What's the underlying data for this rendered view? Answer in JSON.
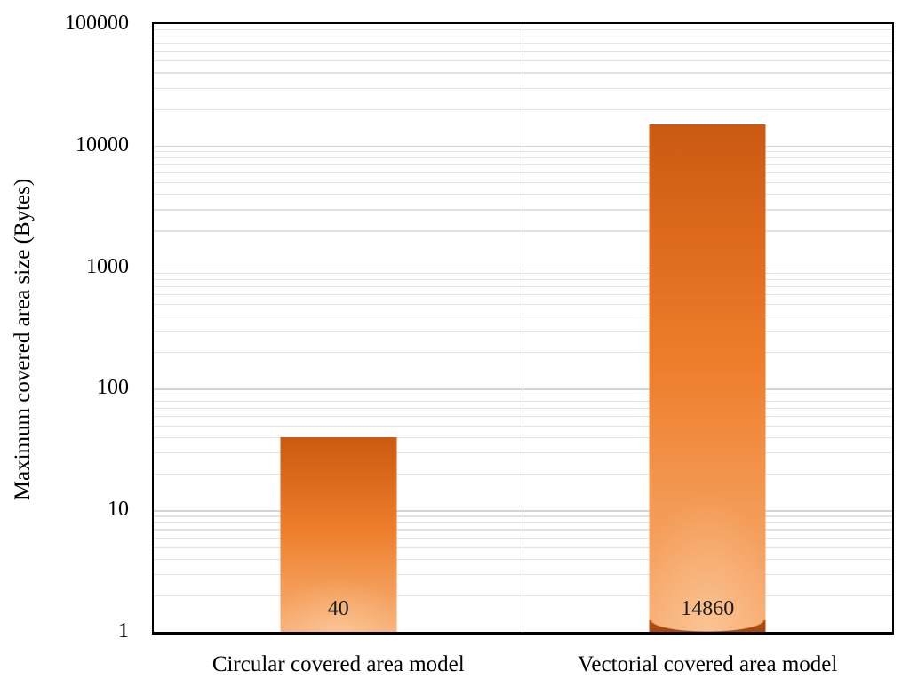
{
  "chart_data": {
    "type": "bar",
    "title": "",
    "categories": [
      "Circular covered area model",
      "Vectorial covered area model"
    ],
    "values": [
      40,
      14860
    ],
    "value_labels": [
      "40",
      "14860"
    ],
    "xlabel": "",
    "ylabel": "Maximum covered area size (Bytes)",
    "y_scale": "log10",
    "ylim": [
      1,
      100000
    ],
    "y_tick_values": [
      1,
      10,
      100,
      1000,
      10000,
      100000
    ],
    "y_tick_labels": [
      "1",
      "10",
      "100",
      "1000",
      "10000",
      "100000"
    ],
    "minor_tick_multiples": [
      2,
      3,
      4,
      5,
      6,
      7,
      8,
      9
    ],
    "grid": {
      "major_horizontal": true,
      "minor_horizontal": true,
      "vertical_category_boundary": true
    },
    "legend_position": "none",
    "bar_base_shadow": [
      false,
      true
    ],
    "colors": {
      "bar_gradient_top": "#ca5a11",
      "bar_gradient_mid": "#ee7e2c",
      "bar_gradient_bottom": "#f8ae74",
      "bar_base_shadow": "#a8480a",
      "major_gridline": "#d4d4d4",
      "minor_gridline": "#e2e2e2",
      "plot_border": "#000000",
      "text": "#000000",
      "background": "#ffffff"
    }
  }
}
